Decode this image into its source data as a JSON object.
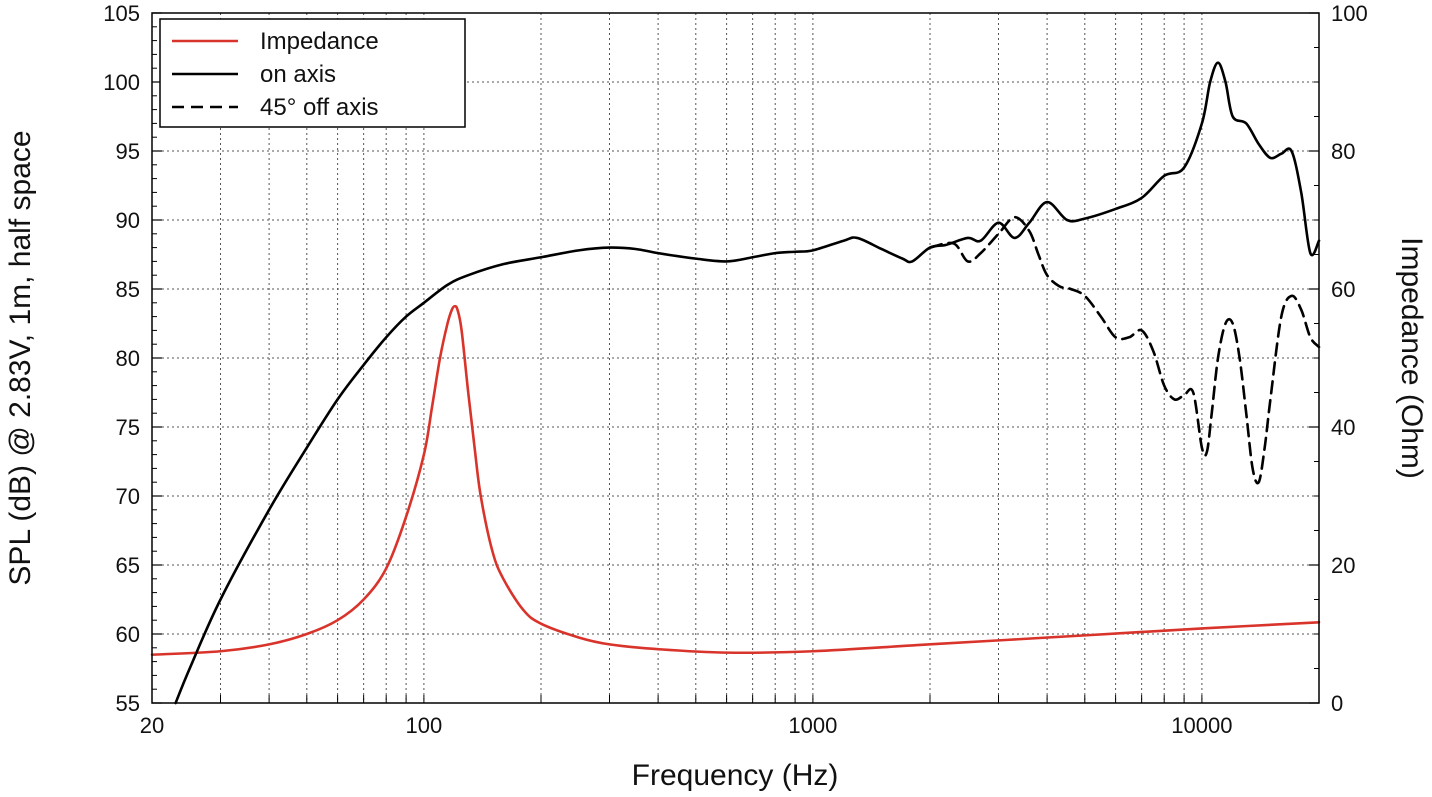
{
  "chart_data": {
    "type": "line",
    "xlabel": "Frequency (Hz)",
    "ylabel": "SPL (dB) @ 2.83V, 1m, half space",
    "y2label": "Impedance (Ohm)",
    "xscale": "log",
    "xlim": [
      20,
      20000
    ],
    "ylim": [
      55,
      105
    ],
    "y2lim": [
      0,
      100
    ],
    "grid": true,
    "legend_position": "top-left",
    "x_tick_labels": [
      "20",
      "100",
      "1000",
      "10000"
    ],
    "y_tick_labels": [
      "55",
      "60",
      "65",
      "70",
      "75",
      "80",
      "85",
      "90",
      "95",
      "100",
      "105"
    ],
    "y2_tick_labels": [
      "0",
      "20",
      "40",
      "60",
      "80",
      "100"
    ],
    "series": [
      {
        "name": "Impedance",
        "axis": "right",
        "color": "#d9342b",
        "dash": "solid",
        "x": [
          20,
          30,
          40,
          50,
          60,
          70,
          80,
          90,
          100,
          105,
          110,
          115,
          118,
          120,
          122,
          125,
          130,
          135,
          140,
          150,
          160,
          180,
          200,
          250,
          300,
          400,
          600,
          1000,
          2000,
          5000,
          10000,
          20000
        ],
        "y": [
          7.0,
          7.5,
          8.5,
          10.0,
          12.0,
          15.0,
          19.5,
          27.0,
          36.0,
          43.0,
          50.0,
          55.0,
          57.0,
          57.5,
          57.0,
          54.0,
          45.0,
          37.0,
          30.0,
          22.0,
          18.0,
          13.5,
          11.5,
          9.5,
          8.5,
          7.8,
          7.3,
          7.5,
          8.5,
          9.8,
          10.8,
          11.7
        ]
      },
      {
        "name": "on axis",
        "axis": "left",
        "color": "#000000",
        "dash": "solid",
        "x": [
          23,
          25,
          30,
          40,
          50,
          60,
          70,
          80,
          90,
          100,
          115,
          130,
          160,
          200,
          250,
          300,
          350,
          400,
          500,
          600,
          700,
          800,
          900,
          1000,
          1200,
          1300,
          1500,
          1700,
          1800,
          2000,
          2200,
          2500,
          2700,
          3000,
          3300,
          3600,
          4000,
          4500,
          5000,
          6000,
          7000,
          8000,
          9000,
          10000,
          10500,
          11000,
          11500,
          12000,
          13000,
          14000,
          15000,
          16000,
          17000,
          18000,
          19000,
          20000
        ],
        "y": [
          55,
          57.5,
          62.5,
          69.0,
          73.5,
          77.0,
          79.5,
          81.5,
          83.0,
          84.0,
          85.3,
          86.0,
          86.8,
          87.3,
          87.8,
          88.0,
          87.9,
          87.6,
          87.2,
          87.0,
          87.3,
          87.6,
          87.7,
          87.8,
          88.5,
          88.7,
          87.9,
          87.2,
          87.0,
          88.0,
          88.2,
          88.7,
          88.5,
          89.8,
          88.7,
          89.8,
          91.3,
          90.0,
          90.1,
          90.8,
          91.6,
          93.2,
          93.8,
          97.0,
          100.0,
          101.4,
          100.0,
          97.5,
          97.0,
          95.5,
          94.5,
          94.8,
          95.0,
          92.0,
          87.6,
          88.5
        ]
      },
      {
        "name": "45° off axis",
        "axis": "left",
        "color": "#000000",
        "dash": "dashed",
        "x": [
          2000,
          2300,
          2500,
          2700,
          3000,
          3300,
          3600,
          3800,
          4000,
          4300,
          4600,
          5000,
          5500,
          6000,
          6500,
          7000,
          7500,
          8000,
          8500,
          9000,
          9500,
          10000,
          10300,
          10600,
          11000,
          11500,
          12000,
          12500,
          13000,
          13500,
          14000,
          14500,
          15000,
          16000,
          17000,
          18000,
          19000,
          20000
        ],
        "y": [
          88.0,
          88.3,
          87.0,
          87.6,
          89.0,
          90.2,
          89.2,
          87.5,
          86.0,
          85.2,
          85.0,
          84.5,
          83.0,
          81.5,
          81.5,
          82.0,
          80.5,
          78.0,
          77.0,
          77.3,
          77.5,
          73.5,
          73.2,
          76.0,
          80.0,
          82.5,
          82.5,
          80.0,
          76.0,
          72.0,
          71.0,
          73.5,
          77.0,
          83.0,
          84.5,
          83.5,
          81.5,
          80.8
        ]
      }
    ]
  }
}
